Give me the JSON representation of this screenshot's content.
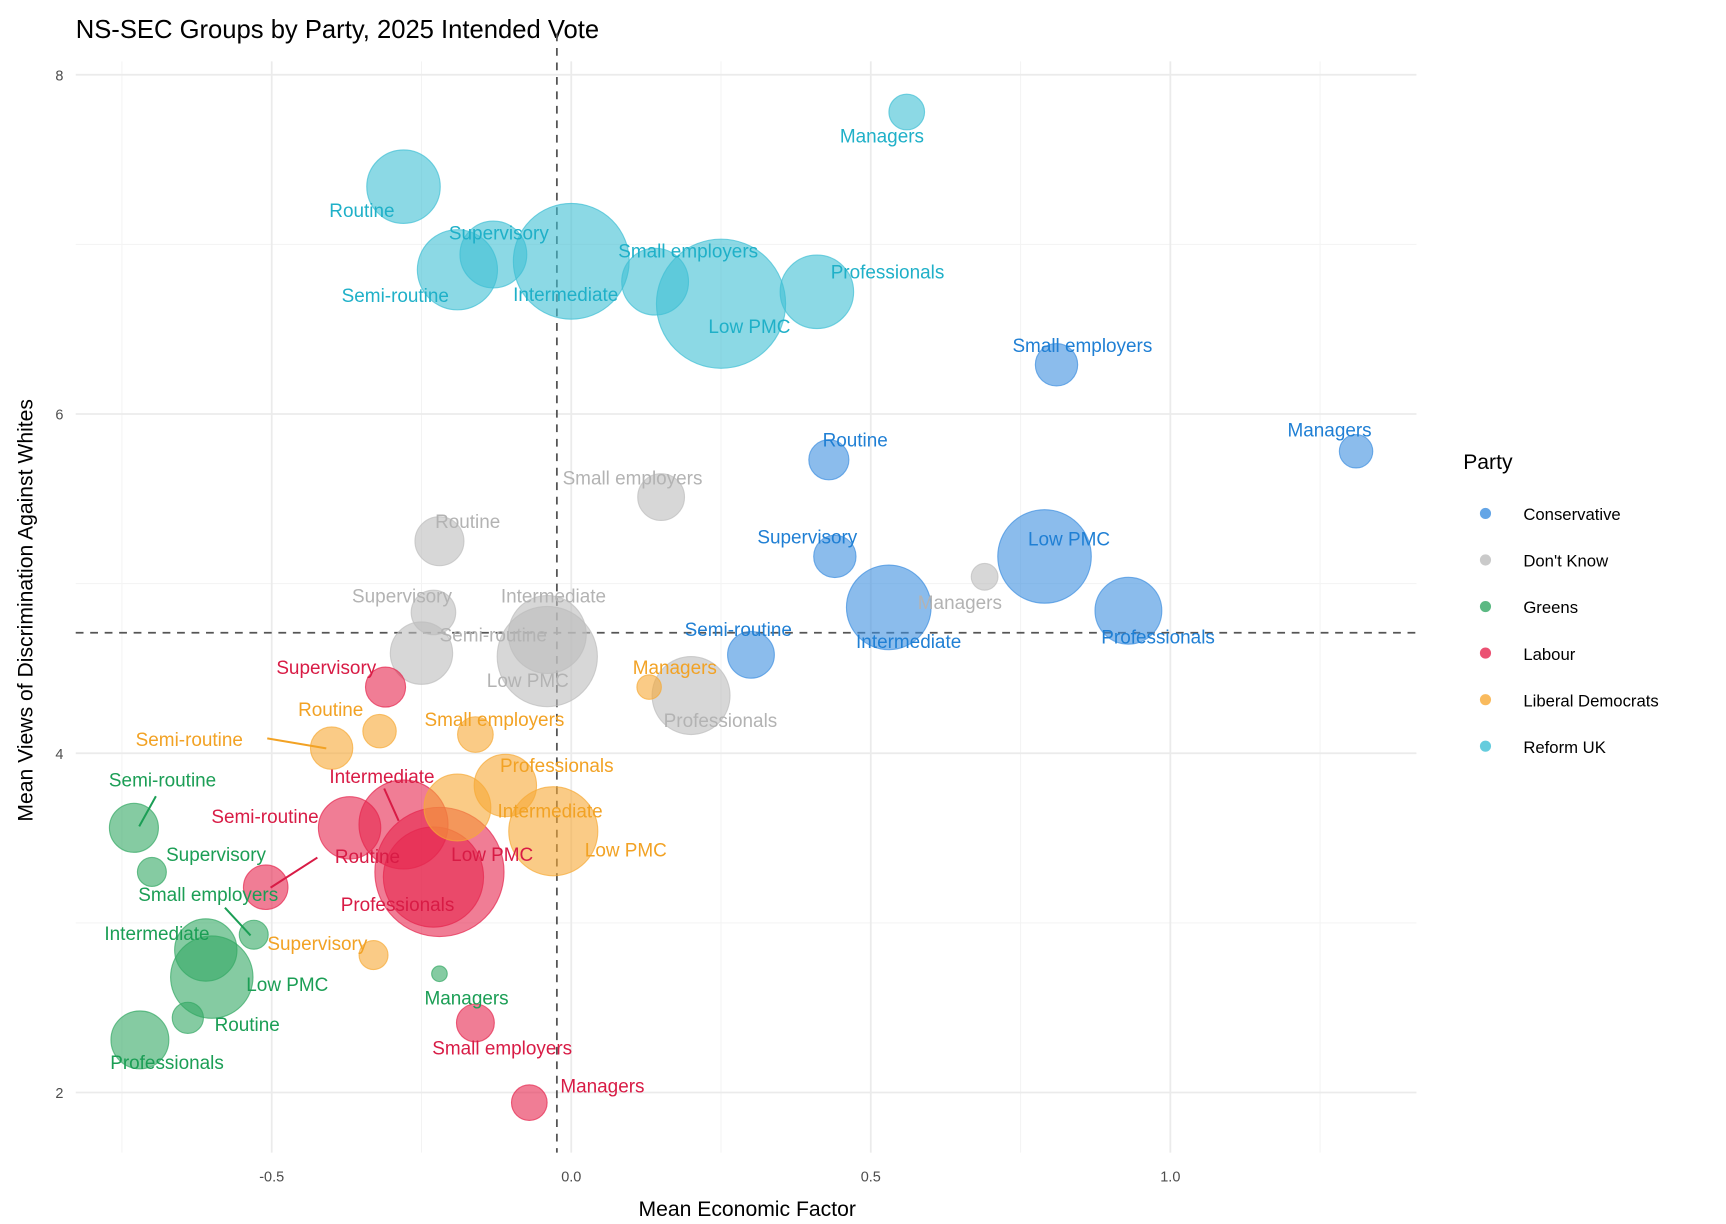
{
  "chart_data": {
    "type": "scatter",
    "title": "NS-SEC Groups by Party, 2025 Intended Vote",
    "xlabel": "Mean Economic Factor",
    "ylabel": "Mean Views of Discrimination Against Whites",
    "xlim": [
      -0.825,
      1.41
    ],
    "ylim": [
      1.64,
      8.08
    ],
    "x_ticks": [
      "-0.5",
      "0.0",
      "0.5",
      "1.0"
    ],
    "x_tick_values": [
      -0.5,
      0,
      0.5,
      1.0
    ],
    "y_ticks": [
      "2",
      "4",
      "6",
      "8"
    ],
    "y_tick_values": [
      2,
      4,
      6,
      8
    ],
    "grid": true,
    "reference_lines": {
      "vertical_x": -0.024,
      "horizontal_y": 4.71
    },
    "legend": {
      "title": "Party",
      "placement": "right"
    },
    "point_size_note": "relative group size",
    "series": [
      {
        "name": "Conservative",
        "color": "#3d8fe0",
        "label_color": "#1f7fd4",
        "points": [
          {
            "group": "Small employers",
            "x": 0.81,
            "y": 6.29,
            "size": 361
          },
          {
            "group": "Managers",
            "x": 1.31,
            "y": 5.78,
            "size": 225
          },
          {
            "group": "Routine",
            "x": 0.43,
            "y": 5.73,
            "size": 324
          },
          {
            "group": "Supervisory",
            "x": 0.44,
            "y": 5.16,
            "size": 361
          },
          {
            "group": "Low PMC",
            "x": 0.79,
            "y": 5.16,
            "size": 1764
          },
          {
            "group": "Intermediate",
            "x": 0.53,
            "y": 4.86,
            "size": 1444
          },
          {
            "group": "Professionals",
            "x": 0.93,
            "y": 4.84,
            "size": 900
          },
          {
            "group": "Semi-routine",
            "x": 0.3,
            "y": 4.58,
            "size": 441
          }
        ]
      },
      {
        "name": "Don't Know",
        "color": "#bdbdbd",
        "label_color": "#b3b3b3",
        "points": [
          {
            "group": "Small employers",
            "x": 0.15,
            "y": 5.51,
            "size": 441
          },
          {
            "group": "Routine",
            "x": -0.22,
            "y": 5.25,
            "size": 484
          },
          {
            "group": "Managers",
            "x": 0.69,
            "y": 5.04,
            "size": 144
          },
          {
            "group": "Supervisory",
            "x": -0.23,
            "y": 4.83,
            "size": 400
          },
          {
            "group": "Semi-routine",
            "x": -0.25,
            "y": 4.59,
            "size": 784
          },
          {
            "group": "Intermediate",
            "x": -0.04,
            "y": 4.7,
            "size": 1225
          },
          {
            "group": "Low PMC",
            "x": -0.04,
            "y": 4.57,
            "size": 2025
          },
          {
            "group": "Professionals",
            "x": 0.2,
            "y": 4.34,
            "size": 1225
          }
        ]
      },
      {
        "name": "Greens",
        "color": "#33a864",
        "label_color": "#1b9e55",
        "points": [
          {
            "group": "Semi-routine",
            "x": -0.73,
            "y": 3.56,
            "size": 484
          },
          {
            "group": "Supervisory",
            "x": -0.7,
            "y": 3.3,
            "size": 169
          },
          {
            "group": "Small employers",
            "x": -0.53,
            "y": 2.93,
            "size": 169
          },
          {
            "group": "Intermediate",
            "x": -0.61,
            "y": 2.84,
            "size": 784
          },
          {
            "group": "Low PMC",
            "x": -0.6,
            "y": 2.68,
            "size": 1369
          },
          {
            "group": "Routine",
            "x": -0.64,
            "y": 2.44,
            "size": 196
          },
          {
            "group": "Professionals",
            "x": -0.72,
            "y": 2.31,
            "size": 676
          },
          {
            "group": "Managers",
            "x": -0.22,
            "y": 2.7,
            "size": 49
          }
        ]
      },
      {
        "name": "Labour",
        "color": "#e6264f",
        "label_color": "#d81b45",
        "points": [
          {
            "group": "Supervisory",
            "x": -0.31,
            "y": 4.39,
            "size": 324
          },
          {
            "group": "Intermediate",
            "x": -0.28,
            "y": 3.58,
            "size": 1600
          },
          {
            "group": "Semi-routine",
            "x": -0.37,
            "y": 3.56,
            "size": 784
          },
          {
            "group": "Routine",
            "x": -0.51,
            "y": 3.21,
            "size": 400
          },
          {
            "group": "Low PMC",
            "x": -0.22,
            "y": 3.3,
            "size": 3364
          },
          {
            "group": "Professionals",
            "x": -0.23,
            "y": 3.27,
            "size": 2025
          },
          {
            "group": "Small employers",
            "x": -0.16,
            "y": 2.41,
            "size": 289
          },
          {
            "group": "Managers",
            "x": -0.07,
            "y": 1.94,
            "size": 256
          }
        ]
      },
      {
        "name": "Liberal Democrats",
        "color": "#f7a935",
        "label_color": "#f2a224",
        "points": [
          {
            "group": "Managers",
            "x": 0.13,
            "y": 4.39,
            "size": 121
          },
          {
            "group": "Routine",
            "x": -0.32,
            "y": 4.13,
            "size": 225
          },
          {
            "group": "Small employers",
            "x": -0.16,
            "y": 4.11,
            "size": 256
          },
          {
            "group": "Semi-routine",
            "x": -0.4,
            "y": 4.03,
            "size": 361
          },
          {
            "group": "Professionals",
            "x": -0.11,
            "y": 3.81,
            "size": 784
          },
          {
            "group": "Intermediate",
            "x": -0.19,
            "y": 3.68,
            "size": 900
          },
          {
            "group": "Low PMC",
            "x": -0.03,
            "y": 3.54,
            "size": 1600
          },
          {
            "group": "Supervisory",
            "x": -0.33,
            "y": 2.81,
            "size": 169
          }
        ]
      },
      {
        "name": "Reform UK",
        "color": "#3fbfd4",
        "label_color": "#1fb0c8",
        "points": [
          {
            "group": "Managers",
            "x": 0.56,
            "y": 7.78,
            "size": 256
          },
          {
            "group": "Routine",
            "x": -0.28,
            "y": 7.34,
            "size": 1089
          },
          {
            "group": "Supervisory",
            "x": -0.13,
            "y": 6.94,
            "size": 900
          },
          {
            "group": "Semi-routine",
            "x": -0.19,
            "y": 6.85,
            "size": 1296
          },
          {
            "group": "Intermediate",
            "x": 0.0,
            "y": 6.9,
            "size": 2704
          },
          {
            "group": "Small employers",
            "x": 0.14,
            "y": 6.78,
            "size": 900
          },
          {
            "group": "Low PMC",
            "x": 0.25,
            "y": 6.65,
            "size": 3364
          },
          {
            "group": "Professionals",
            "x": 0.41,
            "y": 6.72,
            "size": 1089
          }
        ]
      }
    ]
  }
}
